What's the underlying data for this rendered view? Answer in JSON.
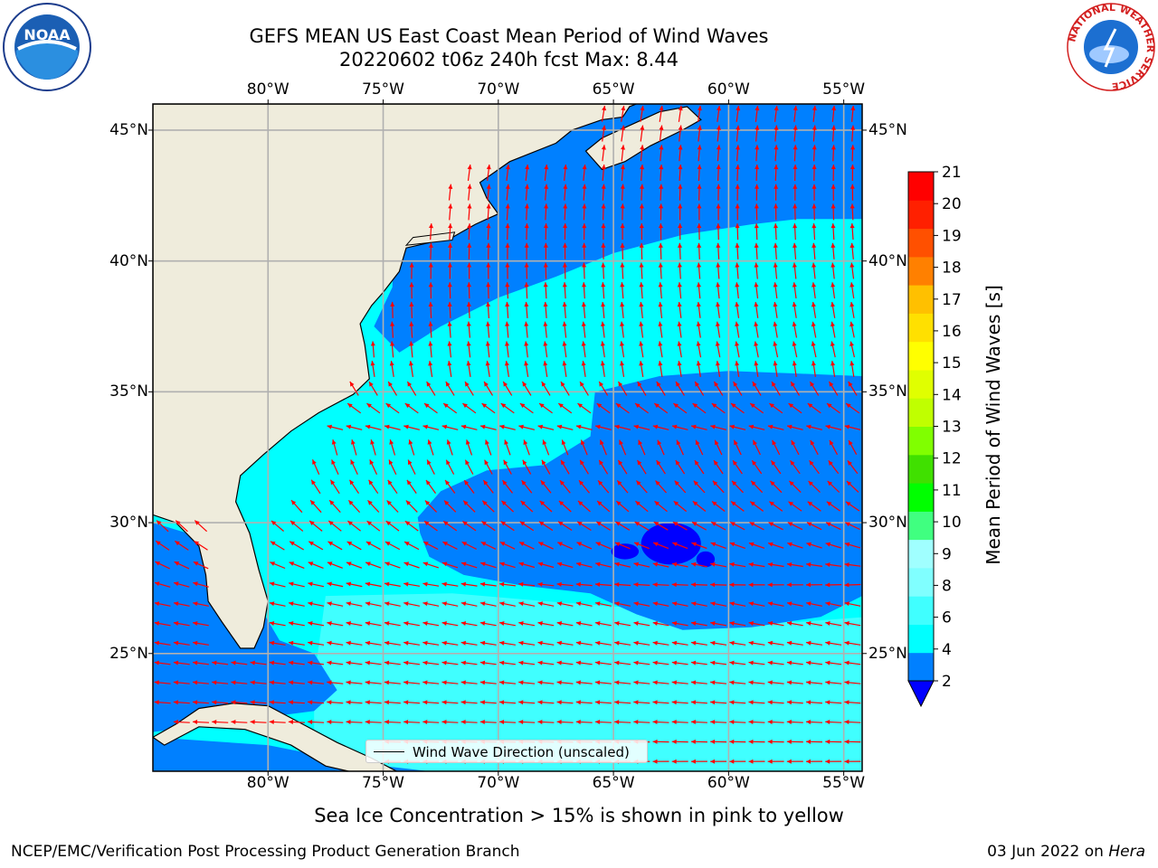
{
  "title": {
    "line1": "GEFS MEAN US East Coast Mean Period of Wind Waves",
    "line2": "20220602 t06z 240h fcst   Max: 8.44"
  },
  "logos": {
    "left": {
      "icon": "noaa-logo-icon",
      "text": "NOAA"
    },
    "right": {
      "icon": "nws-logo-icon",
      "text": "NATIONAL WEATHER SERVICE"
    }
  },
  "map": {
    "projection": "equirectangular",
    "lon_range": [
      -85,
      -54.2
    ],
    "lat_range": [
      20.5,
      46
    ],
    "gridlines": true,
    "lon_ticks": [
      "80°W",
      "75°W",
      "70°W",
      "65°W",
      "60°W",
      "55°W"
    ],
    "lat_ticks": [
      "45°N",
      "40°N",
      "35°N",
      "30°N",
      "25°N"
    ],
    "land_color": "#efecdc",
    "vectors_color": "#ff0000",
    "legend_label": "Wind Wave Direction (unscaled)"
  },
  "colorbar": {
    "label": "Mean Period of Wind Waves [s]",
    "ticks": [
      "21",
      "20",
      "19",
      "18",
      "17",
      "16",
      "15",
      "14",
      "13",
      "12",
      "11",
      "10",
      "9",
      "8",
      "6",
      "4",
      "2"
    ],
    "extend": "min"
  },
  "colors": {
    "under": "#0000ff",
    "bands": [
      "#0080ff",
      "#00ffff",
      "#40ffff",
      "#80ffff",
      "#a0ffff",
      "#40ff80",
      "#00ff00",
      "#40e000",
      "#80ff00",
      "#c0ff00",
      "#e0ff00",
      "#ffff00",
      "#ffe000",
      "#ffc000",
      "#ff8000",
      "#ff5000",
      "#ff2000",
      "#ff0000"
    ]
  },
  "footer": {
    "seaice_note": "Sea Ice Concentration > 15% is shown in pink to yellow",
    "left": "NCEP/EMC/Verification Post Processing Product Generation Branch",
    "date": "03 Jun 2022 on",
    "machine": "Hera"
  }
}
